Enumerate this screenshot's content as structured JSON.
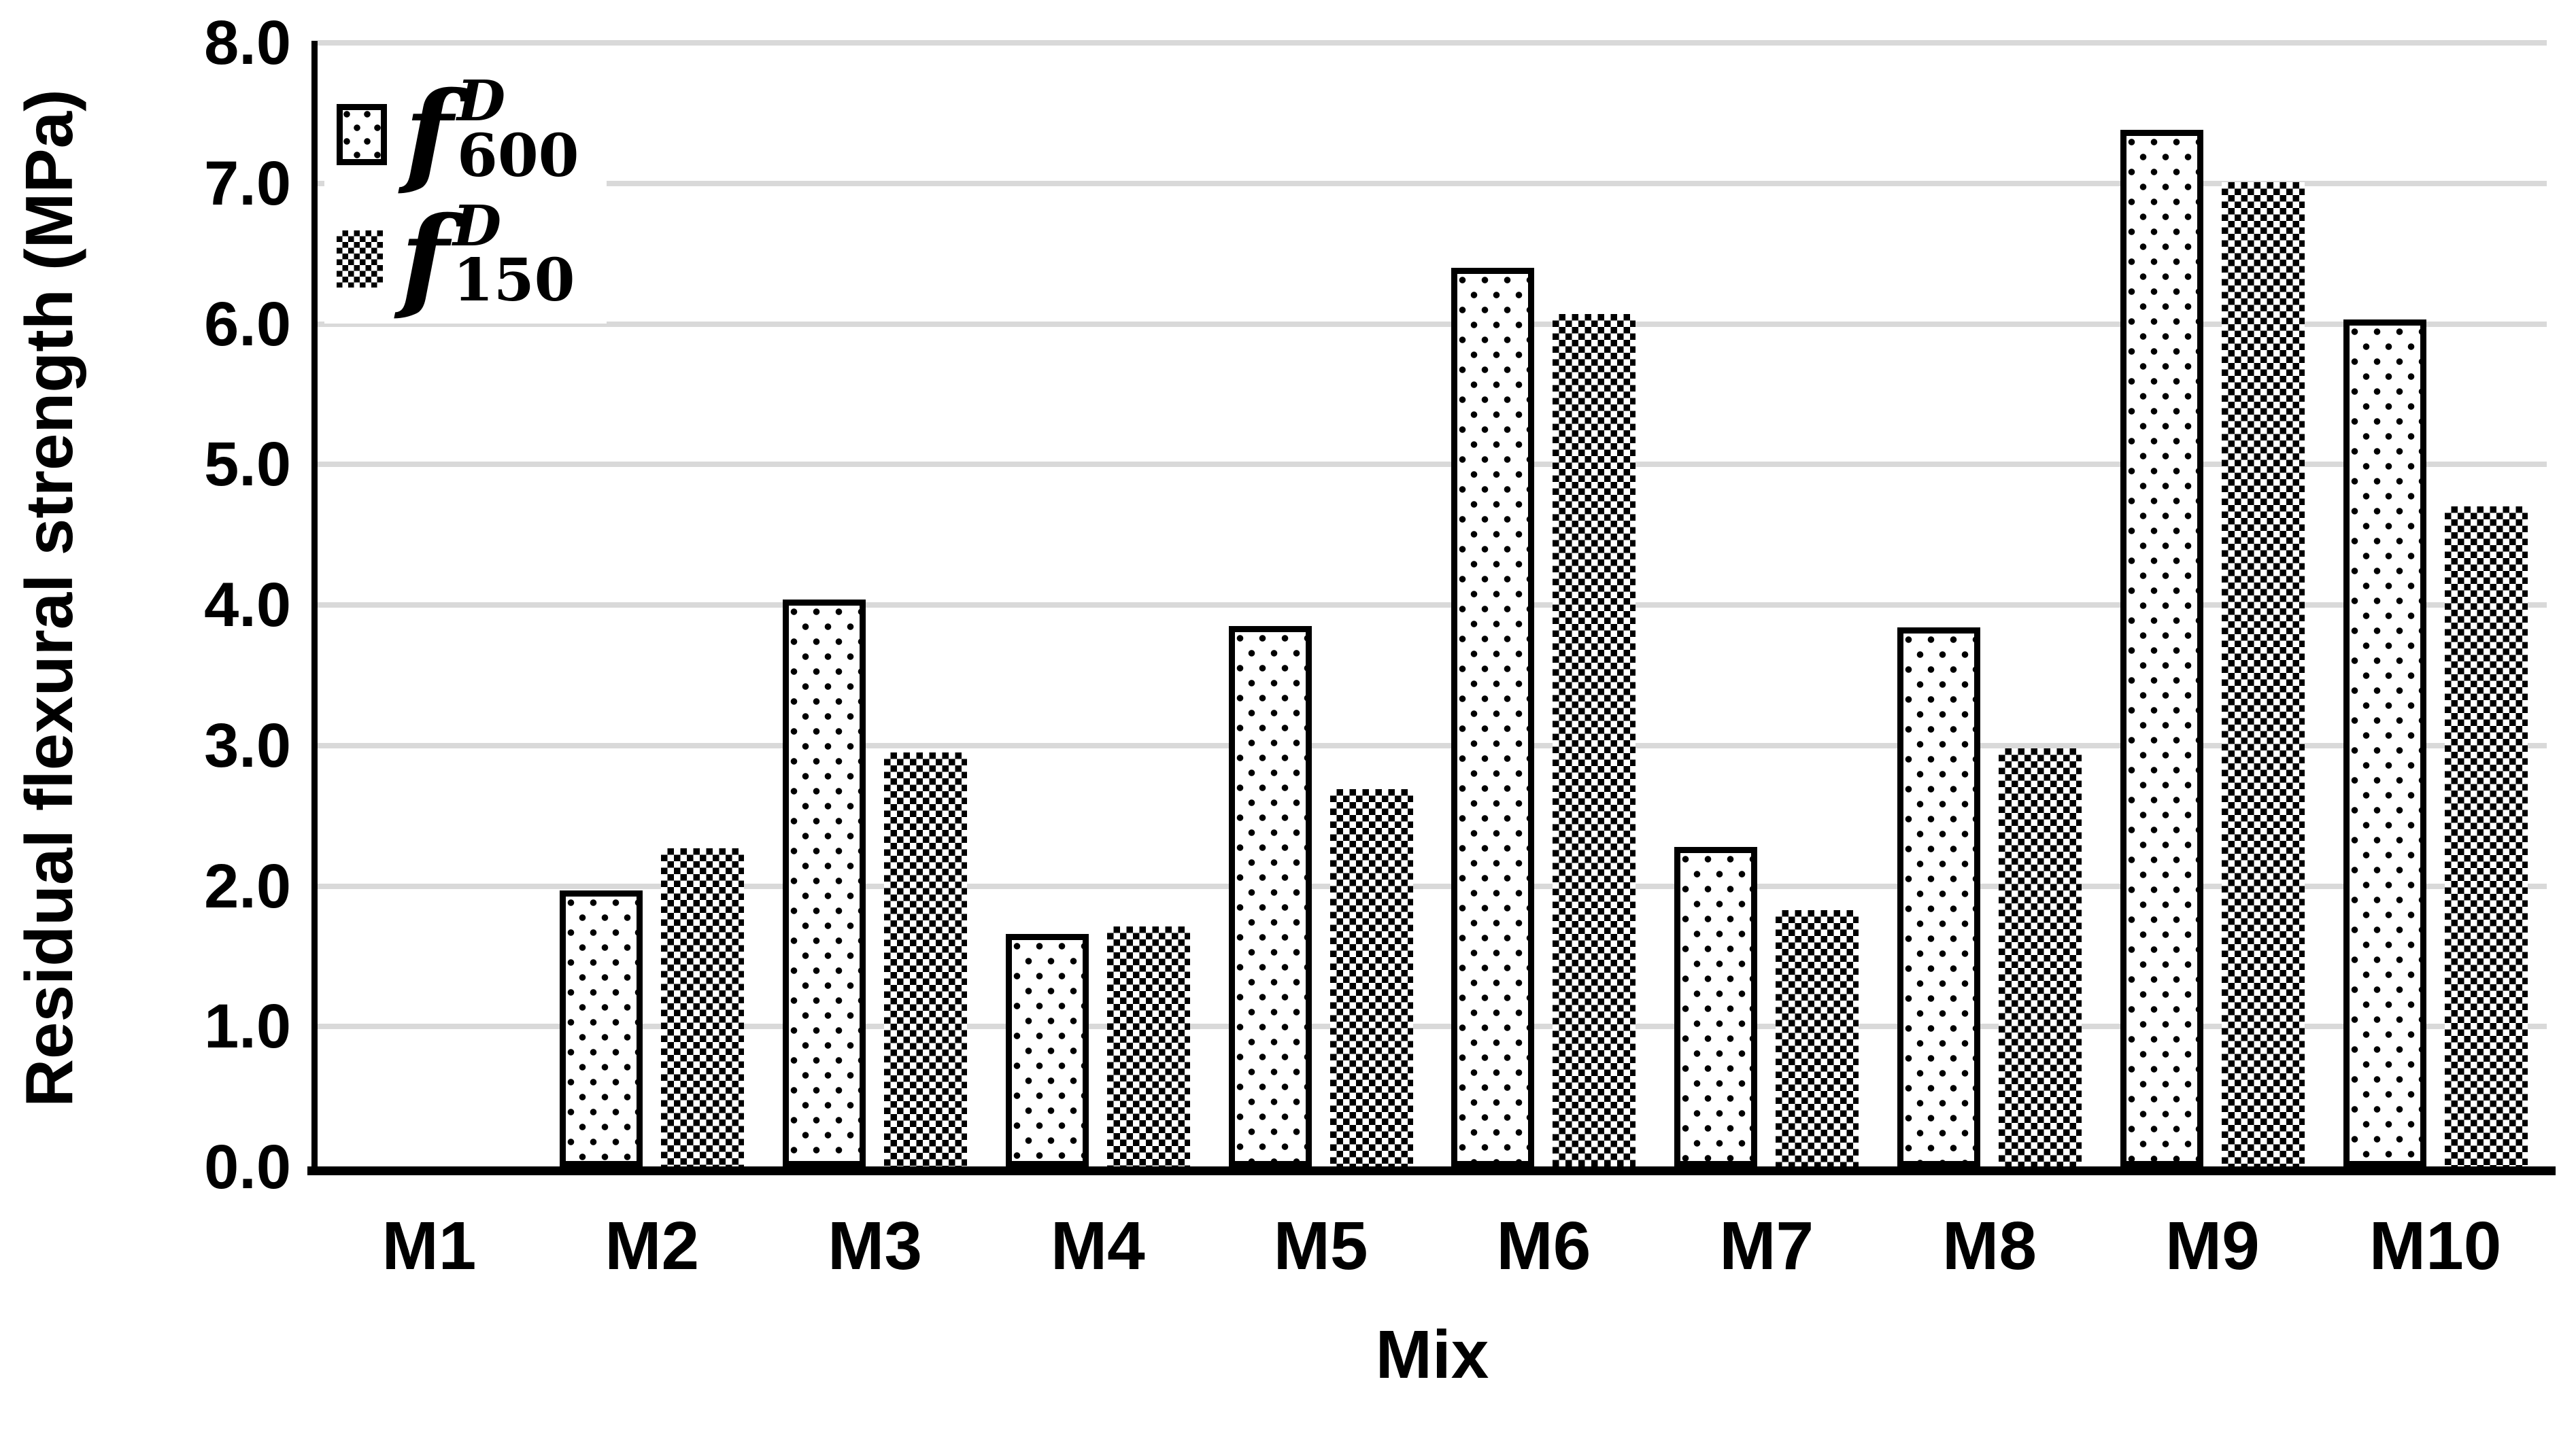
{
  "figure": {
    "background": "#ffffff"
  },
  "colors": {
    "axis": "#000000",
    "gridline": "#d9d9d9",
    "bar_outline": "#000000",
    "bar_fill_background": "#ffffff",
    "pattern_ink": "#000000"
  },
  "legend": [
    {
      "f": "f",
      "sup": "D",
      "sub": "600",
      "pattern": "dotted"
    },
    {
      "f": "f",
      "sup": "D",
      "sub": "150",
      "pattern": "checker"
    }
  ],
  "y_axis": {
    "title": "Residual flexural strength (MPa)",
    "min": 0,
    "max": 8,
    "step": 1,
    "tick_labels": [
      "8.0",
      "7.0",
      "6.0",
      "5.0",
      "4.0",
      "3.0",
      "2.0",
      "1.0",
      "0.0"
    ]
  },
  "x_axis": {
    "title": "Mix",
    "categories": [
      "M1",
      "M2",
      "M3",
      "M4",
      "M5",
      "M6",
      "M7",
      "M8",
      "M9",
      "M10"
    ]
  },
  "chart_data": {
    "type": "bar",
    "categories": [
      "M1",
      "M2",
      "M3",
      "M4",
      "M5",
      "M6",
      "M7",
      "M8",
      "M9",
      "M10"
    ],
    "series": [
      {
        "name": "f_D_600",
        "pattern": "dotted",
        "values": [
          0,
          1.97,
          4.04,
          1.66,
          3.85,
          6.4,
          2.28,
          3.84,
          7.38,
          6.03
        ]
      },
      {
        "name": "f_D_150",
        "pattern": "checker",
        "values": [
          0,
          2.27,
          2.95,
          1.71,
          2.69,
          6.07,
          1.83,
          2.98,
          7.01,
          4.7
        ]
      }
    ],
    "title": "",
    "xlabel": "Mix",
    "ylabel": "Residual flexural strength (MPa)",
    "ylim": [
      0,
      8
    ],
    "grid": true,
    "legend_position": "top-left"
  }
}
